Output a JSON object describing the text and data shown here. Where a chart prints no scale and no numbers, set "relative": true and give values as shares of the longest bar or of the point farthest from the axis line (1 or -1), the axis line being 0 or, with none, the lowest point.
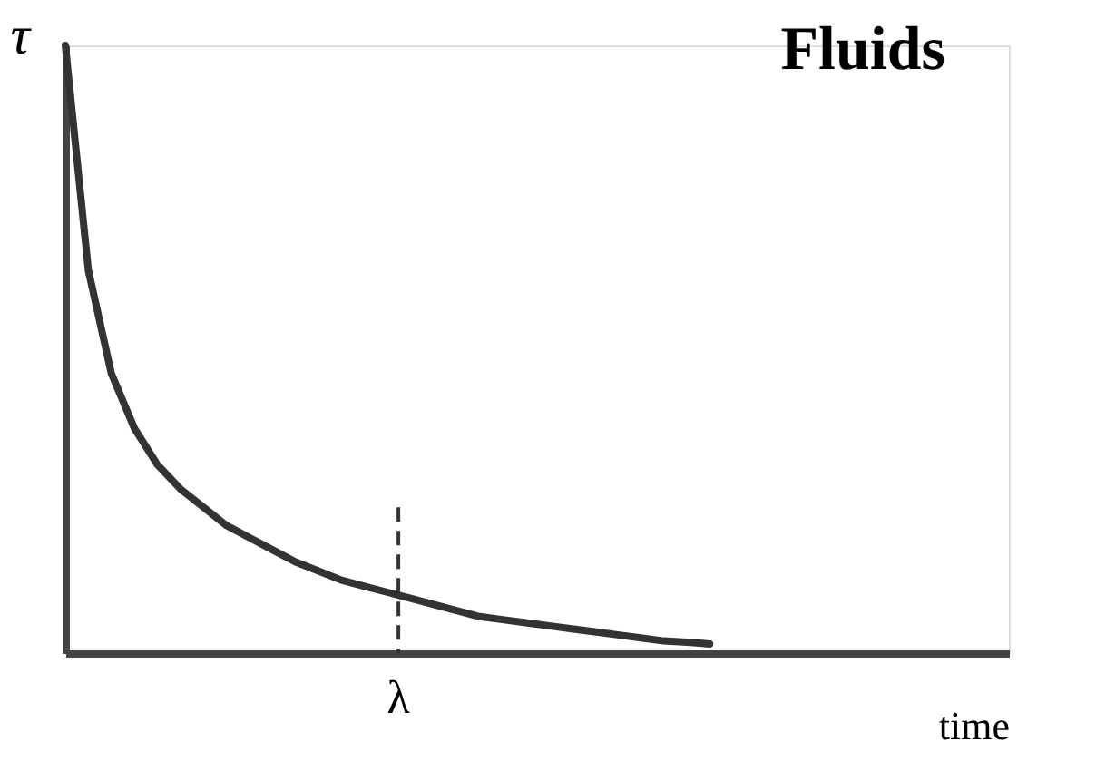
{
  "chart_data": {
    "type": "line",
    "title": "Fluids",
    "xlabel": "time",
    "ylabel": "τ",
    "relative": true,
    "categories": [
      null,
      null,
      null,
      null,
      null,
      null,
      null,
      null,
      null,
      null,
      null,
      null,
      null,
      null,
      null,
      null,
      null,
      null,
      null,
      null,
      null,
      null,
      null,
      null,
      null,
      null,
      null,
      null,
      null,
      null,
      null,
      null,
      null,
      null,
      null,
      null,
      null,
      null,
      null,
      null,
      null,
      null
    ],
    "series": [
      {
        "color": "#333333",
        "values": [
          1.0,
          0.63,
          0.46,
          0.37,
          0.31,
          0.27,
          0.24,
          0.21,
          0.19,
          0.17,
          0.15,
          0.135,
          0.12,
          0.11,
          0.1,
          0.09,
          0.08,
          0.07,
          0.06,
          0.055,
          0.05,
          0.045,
          0.04,
          0.035,
          0.03,
          0.025,
          0.02,
          0.018,
          0.015,
          null,
          null,
          null,
          null,
          null,
          null,
          null,
          null,
          null,
          null,
          null,
          null,
          null
        ]
      }
    ],
    "annotations": [
      "λ"
    ],
    "grid": false,
    "marker": "none",
    "line_style": "solid"
  }
}
